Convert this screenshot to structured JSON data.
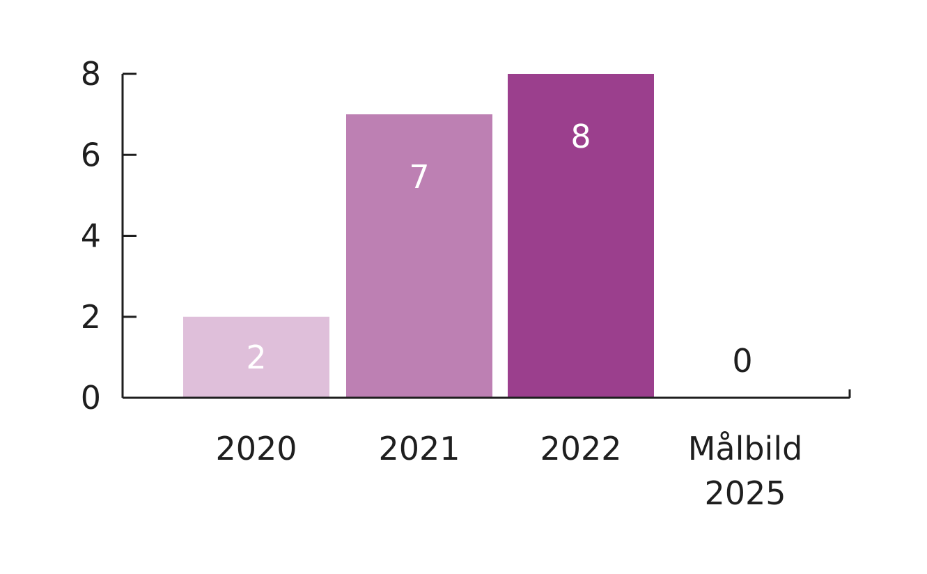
{
  "chart_data": {
    "type": "bar",
    "title": "",
    "xlabel": "",
    "ylabel": "",
    "categories": [
      [
        "2020"
      ],
      [
        "2021"
      ],
      [
        "2022"
      ],
      [
        "Målbild",
        "2025"
      ]
    ],
    "values": [
      2,
      7,
      8,
      0
    ],
    "data_labels": [
      "2",
      "7",
      "8",
      "0"
    ],
    "bar_colors": [
      "#dfbfda",
      "#bd80b3",
      "#9b3f8d",
      "#ffffff"
    ],
    "data_label_colors": [
      "#ffffff",
      "#ffffff",
      "#ffffff",
      "#1e1e1e"
    ],
    "ylim": [
      0,
      8
    ],
    "yticks": [
      0,
      2,
      4,
      6,
      8
    ],
    "ytick_labels": [
      "0",
      "2",
      "4",
      "6",
      "8"
    ],
    "grid": false,
    "legend": "none"
  }
}
